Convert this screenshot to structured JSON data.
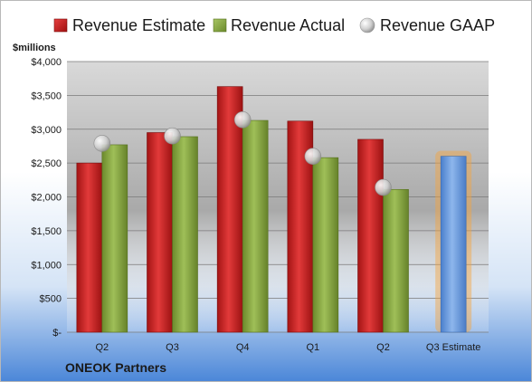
{
  "chart_data": {
    "type": "bar",
    "title": "ONEOK Partners",
    "ylabel": "$millions",
    "ylim": [
      0,
      4000
    ],
    "y_ticks": [
      0,
      500,
      1000,
      1500,
      2000,
      2500,
      3000,
      3500,
      4000
    ],
    "y_tick_labels": [
      "$-",
      "$500",
      "$1,000",
      "$1,500",
      "$2,000",
      "$2,500",
      "$3,000",
      "$3,500",
      "$4,000"
    ],
    "categories": [
      "Q2",
      "Q3",
      "Q4",
      "Q1",
      "Q2",
      "Q3 Estimate"
    ],
    "grid": true,
    "legend_position": "top",
    "series": [
      {
        "name": "Revenue Estimate",
        "kind": "bar",
        "color": "#d42a2a",
        "values": [
          2500,
          2950,
          3630,
          3120,
          2850,
          null
        ]
      },
      {
        "name": "Revenue Actual",
        "kind": "bar",
        "color": "#8fb04a",
        "values": [
          2770,
          2890,
          3130,
          2580,
          2110,
          null
        ]
      },
      {
        "name": "Revenue GAAP",
        "kind": "marker",
        "color": "#c8c8c8",
        "values": [
          2790,
          2900,
          3140,
          2600,
          2140,
          null
        ]
      },
      {
        "name": "",
        "kind": "bar",
        "color": "#6d9ee0",
        "highlight": "#f6a53c",
        "values": [
          null,
          null,
          null,
          null,
          null,
          2600
        ]
      }
    ]
  }
}
